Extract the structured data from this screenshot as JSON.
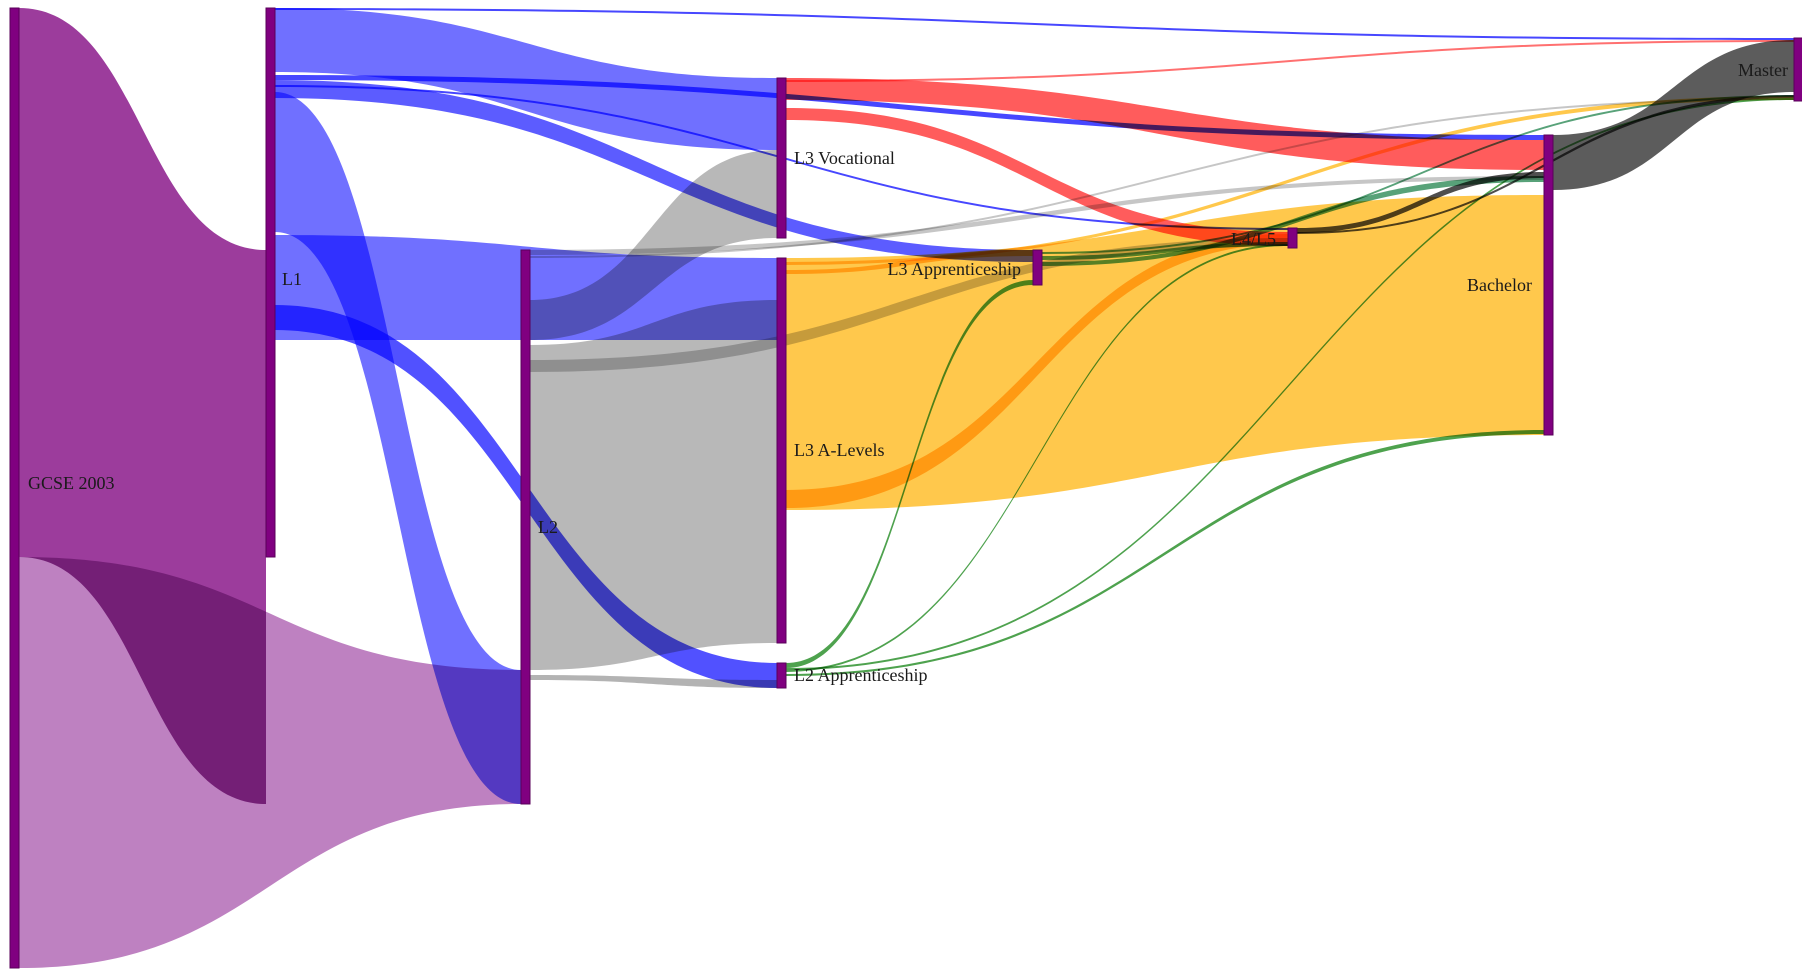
{
  "chart_data": {
    "type": "sankey",
    "title": "",
    "nodes": [
      {
        "id": "gcse",
        "label": "GCSE 2003",
        "color": "#800080"
      },
      {
        "id": "l1",
        "label": "L1",
        "color": "#800080"
      },
      {
        "id": "l2",
        "label": "L2",
        "color": "#800080"
      },
      {
        "id": "l3voc",
        "label": "L3 Vocational",
        "color": "#800080"
      },
      {
        "id": "l3alev",
        "label": "L3 A-Levels",
        "color": "#800080"
      },
      {
        "id": "l2app",
        "label": "L2 Apprenticeship",
        "color": "#800080"
      },
      {
        "id": "l3app",
        "label": "L3 Apprenticeship",
        "color": "#800080"
      },
      {
        "id": "l45",
        "label": "L4/L5",
        "color": "#800080"
      },
      {
        "id": "bach",
        "label": "Bachelor",
        "color": "#800080"
      },
      {
        "id": "master",
        "label": "Master",
        "color": "#800080"
      }
    ],
    "links": [
      {
        "source": "gcse",
        "target": "l1",
        "color": "#8b1a8b"
      },
      {
        "source": "gcse",
        "target": "l2",
        "color": "#a24ca6"
      },
      {
        "source": "l1",
        "target": "l3voc",
        "color": "#3333ff"
      },
      {
        "source": "l1",
        "target": "l3alev",
        "color": "#3333ff"
      },
      {
        "source": "l1",
        "target": "l2",
        "color": "#3333ff"
      },
      {
        "source": "l1",
        "target": "l3app",
        "color": "#3333ff"
      },
      {
        "source": "l1",
        "target": "l2app",
        "color": "#3333ff"
      },
      {
        "source": "l1",
        "target": "master",
        "color": "#3333ff"
      },
      {
        "source": "l1",
        "target": "bach",
        "color": "#3333ff"
      },
      {
        "source": "l1",
        "target": "l45",
        "color": "#3333ff"
      },
      {
        "source": "l2",
        "target": "l3voc",
        "color": "#a0a0a0"
      },
      {
        "source": "l2",
        "target": "l3alev",
        "color": "#a0a0a0"
      },
      {
        "source": "l2",
        "target": "l2app",
        "color": "#a0a0a0"
      },
      {
        "source": "l2",
        "target": "bach",
        "color": "#a0a0a0"
      },
      {
        "source": "l2",
        "target": "l45",
        "color": "#a0a0a0"
      },
      {
        "source": "l2",
        "target": "master",
        "color": "#a0a0a0"
      },
      {
        "source": "l3voc",
        "target": "bach",
        "color": "#ff3333"
      },
      {
        "source": "l3voc",
        "target": "l45",
        "color": "#ff3333"
      },
      {
        "source": "l3voc",
        "target": "master",
        "color": "#ff3333"
      },
      {
        "source": "l3alev",
        "target": "bach",
        "color": "#ffb000"
      },
      {
        "source": "l3alev",
        "target": "l45",
        "color": "#ffb000"
      },
      {
        "source": "l3alev",
        "target": "l3app",
        "color": "#ffb000"
      },
      {
        "source": "l3alev",
        "target": "master",
        "color": "#ffb000"
      },
      {
        "source": "l2app",
        "target": "l3app",
        "color": "#228b22"
      },
      {
        "source": "l2app",
        "target": "l45",
        "color": "#228b22"
      },
      {
        "source": "l2app",
        "target": "bach",
        "color": "#228b22"
      },
      {
        "source": "l2app",
        "target": "master",
        "color": "#228b22"
      },
      {
        "source": "l3app",
        "target": "bach",
        "color": "#2e8b57"
      },
      {
        "source": "l3app",
        "target": "l45",
        "color": "#2e8b57"
      },
      {
        "source": "l3app",
        "target": "master",
        "color": "#2e8b57"
      },
      {
        "source": "l45",
        "target": "bach",
        "color": "#222222"
      },
      {
        "source": "l45",
        "target": "master",
        "color": "#222222"
      },
      {
        "source": "bach",
        "target": "master",
        "color": "#333333"
      }
    ]
  }
}
